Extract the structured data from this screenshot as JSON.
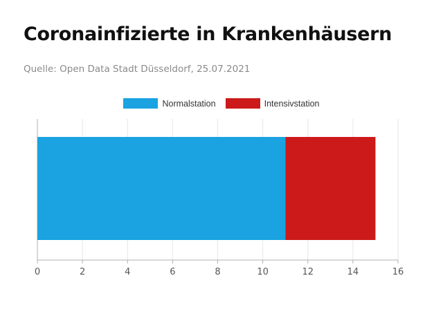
{
  "header": {
    "title": "Coronainfizierte in Krankenhäusern",
    "source": "Quelle: Open Data Stadt Düsseldorf, 25.07.2021"
  },
  "colors": {
    "normalstation": "#1aa3e0",
    "intensivstation": "#cc1a1a",
    "grid": "#e6e6e6",
    "axis": "#b0b0b0",
    "tick_text": "#555555"
  },
  "chart_data": {
    "type": "bar",
    "orientation": "horizontal",
    "stacked": true,
    "title": "Coronainfizierte in Krankenhäusern",
    "categories": [
      ""
    ],
    "series": [
      {
        "name": "Normalstation",
        "values": [
          11
        ]
      },
      {
        "name": "Intensivstation",
        "values": [
          4
        ]
      }
    ],
    "xlim": [
      0,
      16
    ],
    "xticks": [
      "0",
      "2",
      "4",
      "6",
      "8",
      "10",
      "12",
      "14",
      "16"
    ],
    "grid": true,
    "legend": "top-center"
  }
}
